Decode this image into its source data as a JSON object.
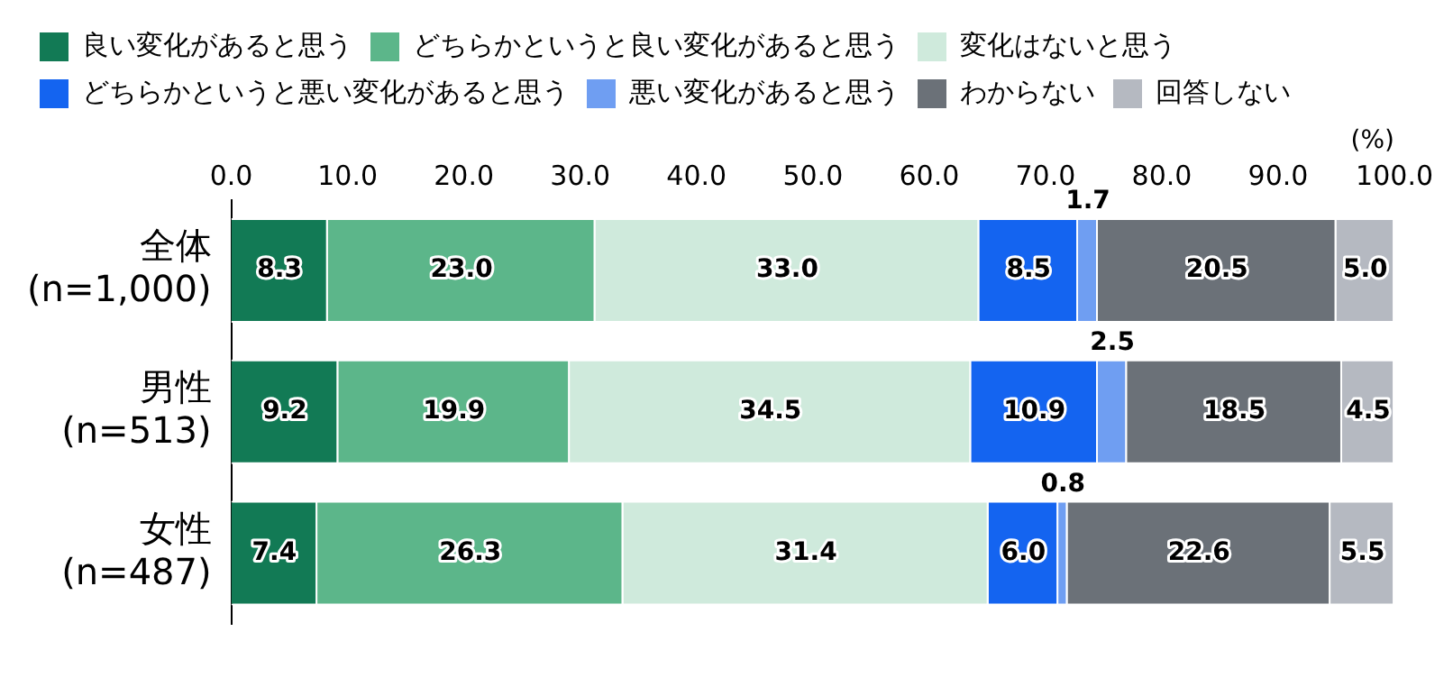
{
  "chart_data": {
    "type": "bar",
    "orientation": "horizontal",
    "stacked": true,
    "legend": "top",
    "grid": false,
    "xlabel": "(%)",
    "categories": [
      "全体\n(n=1,000)",
      "男性\n(n=513)",
      "女性\n(n=487)"
    ],
    "xlim": [
      0,
      100
    ],
    "xticks": [
      {
        "value": 0,
        "label": "0.0"
      },
      {
        "value": 10,
        "label": "10.0"
      },
      {
        "value": 20,
        "label": "20.0"
      },
      {
        "value": 30,
        "label": "30.0"
      },
      {
        "value": 40,
        "label": "40.0"
      },
      {
        "value": 50,
        "label": "50.0"
      },
      {
        "value": 60,
        "label": "60.0"
      },
      {
        "value": 70,
        "label": "70.0"
      },
      {
        "value": 80,
        "label": "80.0"
      },
      {
        "value": 90,
        "label": "90.0"
      },
      {
        "value": 100,
        "label": "100.0"
      }
    ],
    "series": [
      {
        "name": "良い変化があると思う",
        "color": "#127a55",
        "values": [
          8.3,
          9.2,
          7.4
        ],
        "value_labels": [
          "8.3",
          "9.2",
          "7.4"
        ]
      },
      {
        "name": "どちらかというと良い変化があると思う",
        "color": "#5cb68a",
        "values": [
          23.0,
          19.9,
          26.3
        ],
        "value_labels": [
          "23.0",
          "19.9",
          "26.3"
        ]
      },
      {
        "name": "変化はないと思う",
        "color": "#cfeadc",
        "values": [
          33.0,
          34.5,
          31.4
        ],
        "value_labels": [
          "33.0",
          "34.5",
          "31.4"
        ]
      },
      {
        "name": "どちらかというと悪い変化があると思う",
        "color": "#1464f0",
        "values": [
          8.5,
          10.9,
          6.0
        ],
        "value_labels": [
          "8.5",
          "10.9",
          "6.0"
        ]
      },
      {
        "name": "悪い変化があると思う",
        "color": "#6f9ef2",
        "values": [
          1.7,
          2.5,
          0.8
        ],
        "value_labels": [
          "1.7",
          "2.5",
          "0.8"
        ]
      },
      {
        "name": "わからない",
        "color": "#6b7178",
        "values": [
          20.5,
          18.5,
          22.6
        ],
        "value_labels": [
          "20.5",
          "18.5",
          "22.6"
        ]
      },
      {
        "name": "回答しない",
        "color": "#b5b9c1",
        "values": [
          5.0,
          4.5,
          5.5
        ],
        "value_labels": [
          "5.0",
          "4.5",
          "5.5"
        ]
      }
    ]
  }
}
